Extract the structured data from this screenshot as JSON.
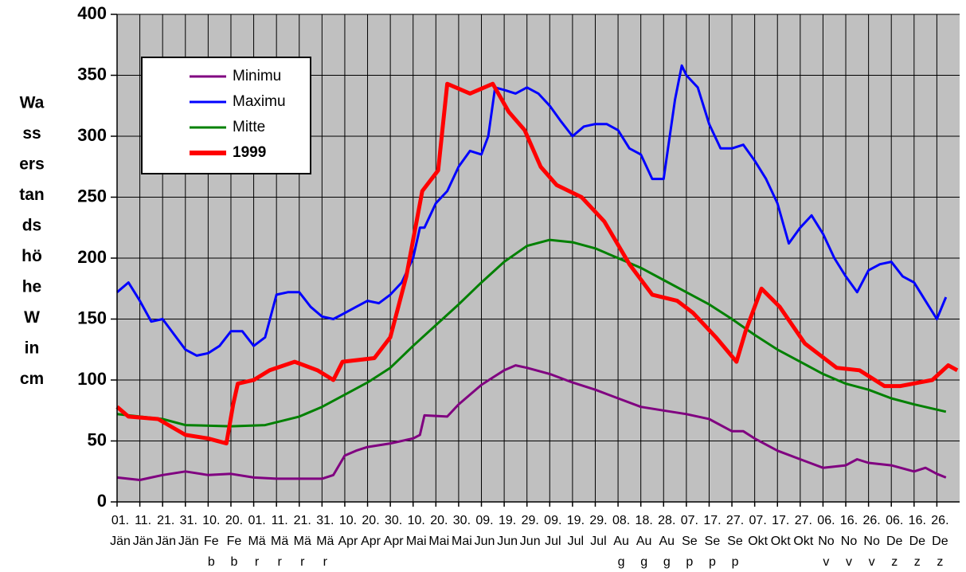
{
  "chart_data": {
    "type": "line",
    "ylabel": [
      "Wa",
      "ss",
      "ers",
      "tan",
      "ds",
      "hö",
      "he",
      "W",
      "in",
      "cm"
    ],
    "xlim": [
      0,
      370
    ],
    "ylim": [
      0,
      400
    ],
    "yticks": [
      0,
      50,
      100,
      150,
      200,
      250,
      300,
      350,
      400
    ],
    "xticks": [
      {
        "value": 0,
        "label": [
          "01.",
          "Jän"
        ]
      },
      {
        "value": 10,
        "label": [
          "11.",
          "Jän"
        ]
      },
      {
        "value": 20,
        "label": [
          "21.",
          "Jän"
        ]
      },
      {
        "value": 30,
        "label": [
          "31.",
          "Jän"
        ]
      },
      {
        "value": 40,
        "label": [
          "10.",
          "Fe",
          "b"
        ]
      },
      {
        "value": 50,
        "label": [
          "20.",
          "Fe",
          "b"
        ]
      },
      {
        "value": 60,
        "label": [
          "01.",
          "Mä",
          "r"
        ]
      },
      {
        "value": 70,
        "label": [
          "11.",
          "Mä",
          "r"
        ]
      },
      {
        "value": 80,
        "label": [
          "21.",
          "Mä",
          "r"
        ]
      },
      {
        "value": 90,
        "label": [
          "31.",
          "Mä",
          "r"
        ]
      },
      {
        "value": 100,
        "label": [
          "10.",
          "Apr"
        ]
      },
      {
        "value": 110,
        "label": [
          "20.",
          "Apr"
        ]
      },
      {
        "value": 120,
        "label": [
          "30.",
          "Apr"
        ]
      },
      {
        "value": 130,
        "label": [
          "10.",
          "Mai"
        ]
      },
      {
        "value": 140,
        "label": [
          "20.",
          "Mai"
        ]
      },
      {
        "value": 150,
        "label": [
          "30.",
          "Mai"
        ]
      },
      {
        "value": 160,
        "label": [
          "09.",
          "Jun"
        ]
      },
      {
        "value": 170,
        "label": [
          "19.",
          "Jun"
        ]
      },
      {
        "value": 180,
        "label": [
          "29.",
          "Jun"
        ]
      },
      {
        "value": 190,
        "label": [
          "09.",
          "Jul"
        ]
      },
      {
        "value": 200,
        "label": [
          "19.",
          "Jul"
        ]
      },
      {
        "value": 210,
        "label": [
          "29.",
          "Jul"
        ]
      },
      {
        "value": 220,
        "label": [
          "08.",
          "Au",
          "g"
        ]
      },
      {
        "value": 230,
        "label": [
          "18.",
          "Au",
          "g"
        ]
      },
      {
        "value": 240,
        "label": [
          "28.",
          "Au",
          "g"
        ]
      },
      {
        "value": 250,
        "label": [
          "07.",
          "Se",
          "p"
        ]
      },
      {
        "value": 260,
        "label": [
          "17.",
          "Se",
          "p"
        ]
      },
      {
        "value": 270,
        "label": [
          "27.",
          "Se",
          "p"
        ]
      },
      {
        "value": 280,
        "label": [
          "07.",
          "Okt"
        ]
      },
      {
        "value": 290,
        "label": [
          "17.",
          "Okt"
        ]
      },
      {
        "value": 300,
        "label": [
          "27.",
          "Okt"
        ]
      },
      {
        "value": 310,
        "label": [
          "06.",
          "No",
          "v"
        ]
      },
      {
        "value": 320,
        "label": [
          "16.",
          "No",
          "v"
        ]
      },
      {
        "value": 330,
        "label": [
          "26.",
          "No",
          "v"
        ]
      },
      {
        "value": 340,
        "label": [
          "06.",
          "De",
          "z"
        ]
      },
      {
        "value": 350,
        "label": [
          "16.",
          "De",
          "z"
        ]
      },
      {
        "value": 360,
        "label": [
          "26.",
          "De",
          "z"
        ]
      }
    ],
    "grid": true,
    "legend": "upper left",
    "series": [
      {
        "name": "Minimu",
        "color": "#800080",
        "width": 3,
        "x": [
          0,
          10,
          15,
          20,
          30,
          40,
          50,
          60,
          70,
          80,
          90,
          95,
          100,
          105,
          110,
          120,
          130,
          133,
          135,
          145,
          150,
          155,
          160,
          165,
          170,
          175,
          180,
          190,
          200,
          210,
          220,
          230,
          240,
          250,
          260,
          270,
          275,
          280,
          290,
          300,
          310,
          320,
          325,
          330,
          340,
          350,
          355,
          360,
          364
        ],
        "values": [
          20,
          18,
          20,
          22,
          25,
          22,
          23,
          20,
          19,
          19,
          19,
          22,
          38,
          42,
          45,
          48,
          52,
          55,
          71,
          70,
          80,
          88,
          96,
          102,
          108,
          112,
          110,
          105,
          98,
          92,
          85,
          78,
          75,
          72,
          68,
          58,
          58,
          52,
          42,
          35,
          28,
          30,
          35,
          32,
          30,
          25,
          28,
          23,
          20
        ]
      },
      {
        "name": "Maximu",
        "color": "#0000ff",
        "width": 3,
        "x": [
          0,
          5,
          10,
          15,
          20,
          30,
          35,
          40,
          45,
          50,
          55,
          60,
          65,
          70,
          75,
          80,
          85,
          90,
          95,
          100,
          105,
          110,
          115,
          120,
          125,
          130,
          133,
          135,
          140,
          145,
          150,
          155,
          160,
          163,
          166,
          170,
          175,
          180,
          185,
          190,
          195,
          200,
          205,
          210,
          215,
          220,
          225,
          230,
          235,
          240,
          245,
          248,
          250,
          255,
          260,
          265,
          270,
          275,
          280,
          285,
          290,
          295,
          300,
          305,
          310,
          315,
          320,
          325,
          330,
          335,
          340,
          345,
          350,
          355,
          360,
          364
        ],
        "values": [
          172,
          180,
          165,
          148,
          150,
          125,
          120,
          122,
          128,
          140,
          140,
          128,
          135,
          170,
          172,
          172,
          160,
          152,
          150,
          155,
          160,
          165,
          163,
          170,
          180,
          200,
          225,
          225,
          245,
          255,
          275,
          288,
          285,
          300,
          340,
          338,
          335,
          340,
          335,
          325,
          312,
          300,
          308,
          310,
          310,
          305,
          290,
          285,
          265,
          265,
          330,
          358,
          350,
          340,
          310,
          290,
          290,
          293,
          280,
          265,
          245,
          212,
          225,
          235,
          220,
          200,
          185,
          172,
          190,
          195,
          197,
          185,
          180,
          165,
          150,
          168
        ]
      },
      {
        "name": "Mitte",
        "color": "#008000",
        "width": 3,
        "x": [
          0,
          20,
          30,
          50,
          65,
          80,
          90,
          100,
          110,
          120,
          130,
          140,
          150,
          160,
          170,
          180,
          190,
          200,
          210,
          220,
          230,
          240,
          250,
          260,
          270,
          280,
          290,
          300,
          310,
          320,
          330,
          340,
          350,
          364
        ],
        "values": [
          72,
          68,
          63,
          62,
          63,
          70,
          78,
          88,
          98,
          110,
          128,
          145,
          162,
          180,
          197,
          210,
          215,
          213,
          208,
          200,
          192,
          182,
          172,
          162,
          150,
          137,
          125,
          115,
          105,
          97,
          92,
          85,
          80,
          74
        ]
      },
      {
        "name": "1999",
        "color": "#ff0000",
        "width": 5,
        "bold": true,
        "x": [
          0,
          5,
          18,
          30,
          40,
          48,
          51,
          53,
          60,
          67,
          78,
          88,
          95,
          99,
          113,
          120,
          127,
          134,
          141,
          145,
          155,
          165,
          172,
          179,
          186,
          193,
          204,
          214,
          225,
          235,
          246,
          253,
          263,
          272,
          276,
          283,
          291,
          302,
          316,
          326,
          337,
          344,
          358,
          365,
          369
        ],
        "values": [
          78,
          70,
          68,
          55,
          52,
          48,
          80,
          97,
          100,
          108,
          115,
          108,
          100,
          115,
          118,
          135,
          185,
          255,
          272,
          343,
          335,
          343,
          320,
          305,
          275,
          260,
          250,
          230,
          195,
          170,
          165,
          155,
          135,
          115,
          140,
          175,
          160,
          130,
          110,
          108,
          95,
          95,
          100,
          112,
          108
        ]
      }
    ]
  }
}
